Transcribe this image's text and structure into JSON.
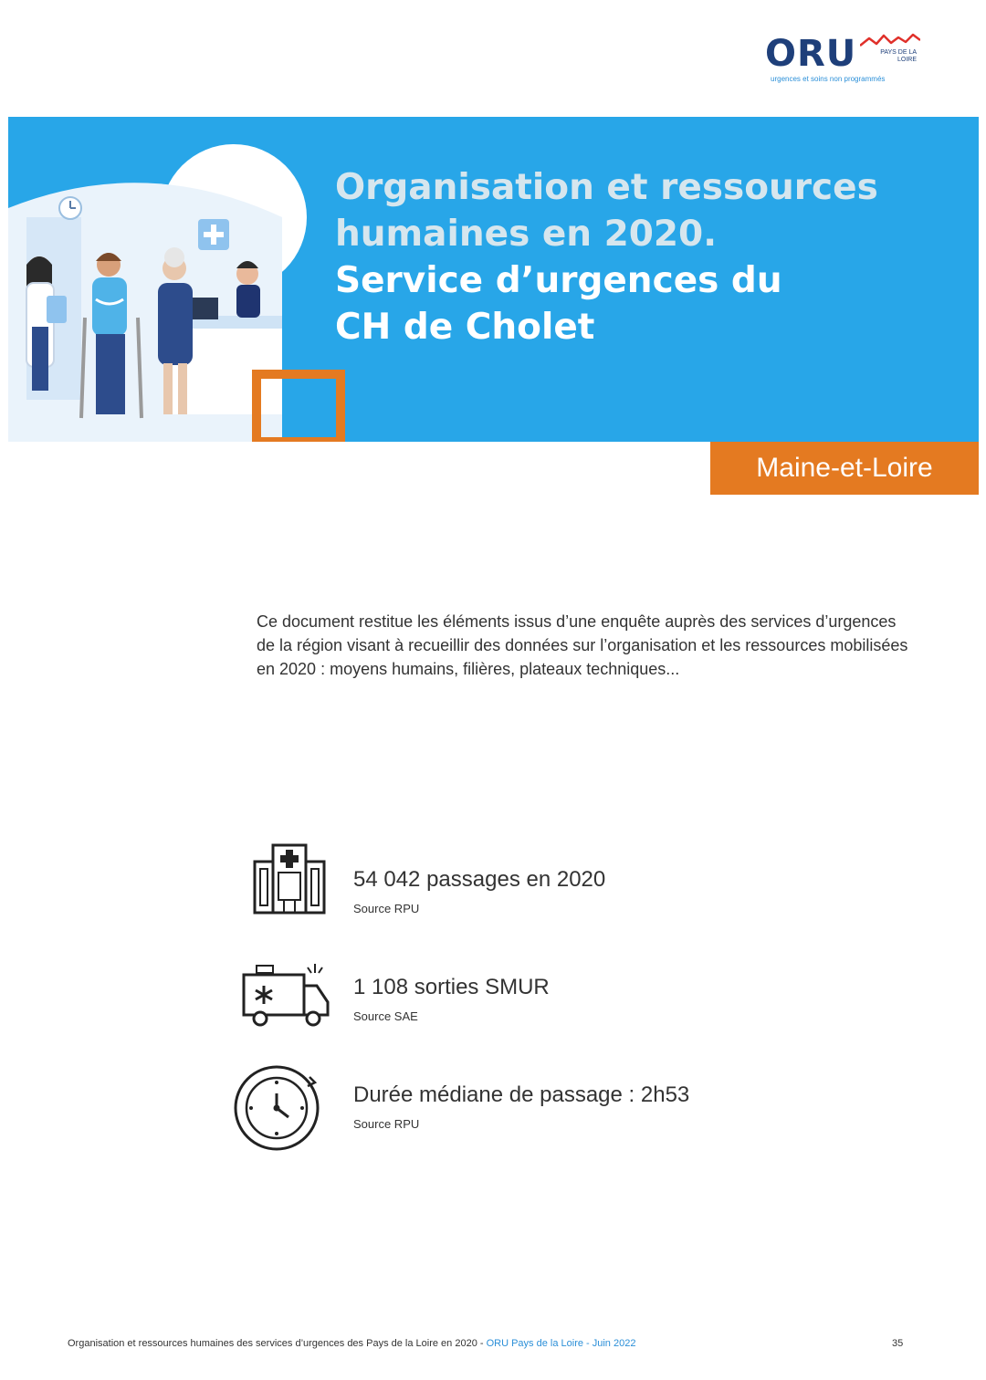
{
  "logo": {
    "text": "ORU",
    "region": "PAYS DE LA LOIRE",
    "tagline": "urgences et soins non programmés"
  },
  "banner": {
    "title_line1": "Organisation et ressources",
    "title_line2": "humaines en 2020.",
    "title_line3": "Service d’urgences du",
    "title_line4": "CH de Cholet"
  },
  "region_tag": "Maine-et-Loire",
  "intro": "Ce document restitue les éléments issus d’une enquête auprès des services d’urgences de la région visant à recueillir des données sur l’organisation et les ressources mobilisées en 2020 : moyens humains, filières, plateaux techniques...",
  "stats": [
    {
      "icon": "hospital-icon",
      "main": "54 042 passages en 2020",
      "source": "Source RPU"
    },
    {
      "icon": "ambulance-icon",
      "main": "1 108 sorties SMUR",
      "source": "Source SAE"
    },
    {
      "icon": "stopwatch-icon",
      "main": "Durée médiane de passage : 2h53",
      "source": "Source RPU"
    }
  ],
  "footer": {
    "text": "Organisation et ressources humaines des services d’urgences des Pays de la Loire en 2020 - ",
    "accent": "ORU Pays de la Loire - Juin 2022",
    "page": "35"
  },
  "colors": {
    "banner_blue": "#28a6e8",
    "orange": "#e47a21",
    "navy": "#1e3f7a",
    "logo_blue": "#2b8fd8",
    "logo_red": "#e0302a"
  }
}
